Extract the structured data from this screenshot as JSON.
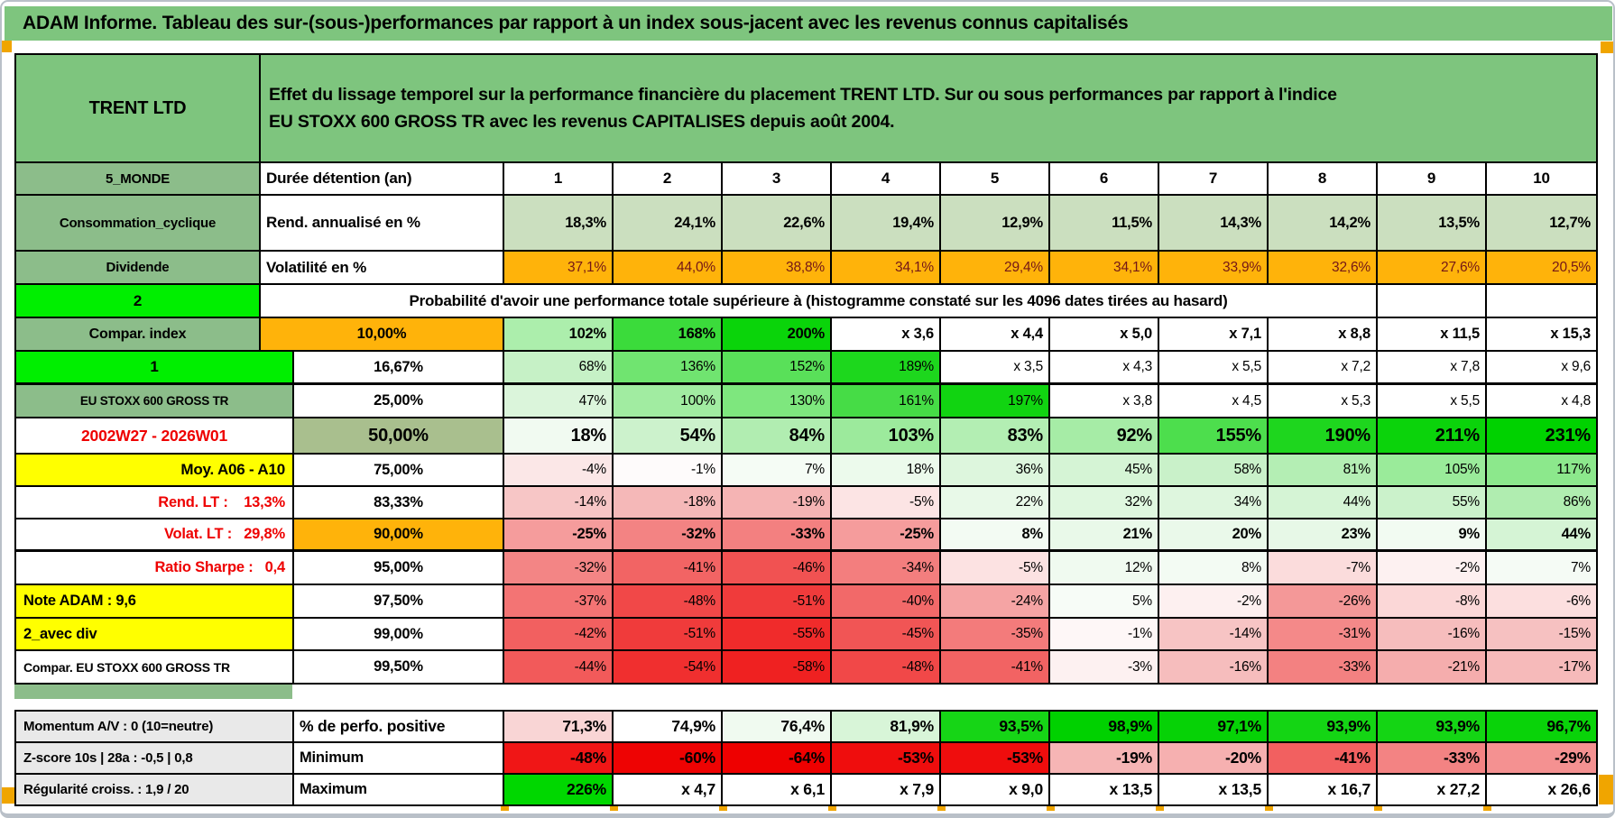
{
  "title": {
    "text": "ADAM Informe. Tableau des sur-(sous-)performances par rapport à un index sous-jacent avec les revenus connus capitalisés"
  },
  "sheet_header": {
    "instrument": "TRENT LTD",
    "description_line1": "Effet du lissage temporel sur la performance financière du placement TRENT LTD. Sur ou sous performances par rapport à l'indice",
    "description_line2": "EU STOXX 600 GROSS TR avec les revenus CAPITALISES depuis août 2004."
  },
  "palette": {
    "green_header": "#7ec57e",
    "green_label": "#8cbd8a",
    "green_bright": "#00ef00",
    "green_sage": "#cbdfbf",
    "green_olive": "#a9bf8e",
    "orange": "#ffb30a",
    "orange_marker": "#f0a500",
    "yellow": "#ffff00",
    "gray_label": "#e9e9e9",
    "red_text": "#ee0000",
    "dark_red_text": "#731717",
    "comment_marker": "#ff0000"
  },
  "rows": [
    {
      "key": "duree",
      "label": {
        "t": "5_MONDE",
        "bg": "#8cbd8a"
      },
      "b": {
        "t": "Durée détention (an)",
        "bg": ""
      },
      "cells": [
        [
          "1",
          ""
        ],
        [
          "2",
          ""
        ],
        [
          "3",
          ""
        ],
        [
          "4",
          ""
        ],
        [
          "5",
          ""
        ],
        [
          "6",
          ""
        ],
        [
          "7",
          ""
        ],
        [
          "8",
          ""
        ],
        [
          "9",
          ""
        ],
        [
          "10",
          ""
        ]
      ]
    },
    {
      "key": "rend",
      "label": {
        "t": "Consommation_cyclique",
        "bg": "#8cbd8a"
      },
      "b": {
        "t": "Rend. annualisé en %",
        "bg": ""
      },
      "cells": [
        [
          "18,3%",
          "#cbdfbf"
        ],
        [
          "24,1%",
          "#cbdfbf"
        ],
        [
          "22,6%",
          "#cbdfbf"
        ],
        [
          "19,4%",
          "#cbdfbf"
        ],
        [
          "12,9%",
          "#cbdfbf"
        ],
        [
          "11,5%",
          "#cbdfbf"
        ],
        [
          "14,3%",
          "#cbdfbf"
        ],
        [
          "14,2%",
          "#cbdfbf"
        ],
        [
          "13,5%",
          "#cbdfbf"
        ],
        [
          "12,7%",
          "#cbdfbf"
        ]
      ]
    },
    {
      "key": "volat",
      "label": {
        "t": "Dividende",
        "bg": "#8cbd8a"
      },
      "b": {
        "t": "Volatilité en %",
        "bg": ""
      },
      "cells": [
        [
          "37,1%",
          "#ffb30a"
        ],
        [
          "44,0%",
          "#ffb30a"
        ],
        [
          "38,8%",
          "#ffb30a"
        ],
        [
          "34,1%",
          "#ffb30a"
        ],
        [
          "29,4%",
          "#ffb30a"
        ],
        [
          "34,1%",
          "#ffb30a"
        ],
        [
          "33,9%",
          "#ffb30a"
        ],
        [
          "32,6%",
          "#ffb30a"
        ],
        [
          "27,6%",
          "#ffb30a"
        ],
        [
          "20,5%",
          "#ffb30a"
        ]
      ]
    },
    {
      "key": "prob",
      "label": {
        "t": "2",
        "bg": "#00ef00",
        "marker": true
      },
      "b": {
        "t": "Probabilité d'avoir une performance totale supérieure à (histogramme constaté sur les 4096 dates tirées au hasard)",
        "bg": "",
        "span": 9
      },
      "cells": [
        [
          "",
          ""
        ],
        [
          "",
          ""
        ]
      ]
    },
    {
      "key": "p10",
      "label": {
        "t": "Compar. index",
        "bg": "#8cbd8a"
      },
      "b": {
        "t": "10,00%",
        "bg": "#ffb30a"
      },
      "cells": [
        [
          "102%",
          "#aceeac"
        ],
        [
          "168%",
          "#3bdb3b"
        ],
        [
          "200%",
          "#0ad40a"
        ],
        [
          "x 3,6",
          ""
        ],
        [
          "x 4,4",
          ""
        ],
        [
          "x 5,0",
          ""
        ],
        [
          "x 7,1",
          ""
        ],
        [
          "x 8,8",
          ""
        ],
        [
          "x 11,5",
          ""
        ],
        [
          "x 15,3",
          ""
        ]
      ]
    },
    {
      "key": "p1667",
      "label": {
        "t": "1",
        "bg": "#00ef00",
        "marker": true
      },
      "b": {
        "t": "16,67%",
        "bg": ""
      },
      "cells": [
        [
          "68%",
          "#c6f1c6"
        ],
        [
          "136%",
          "#70e470"
        ],
        [
          "152%",
          "#59e059"
        ],
        [
          "189%",
          "#1dd71d"
        ],
        [
          "x 3,5",
          ""
        ],
        [
          "x 4,3",
          ""
        ],
        [
          "x 5,5",
          ""
        ],
        [
          "x 7,2",
          ""
        ],
        [
          "x 7,8",
          ""
        ],
        [
          "x 9,6",
          ""
        ]
      ]
    },
    {
      "key": "p25",
      "label": {
        "t": "EU STOXX 600 GROSS TR",
        "bg": "#8cbd8a"
      },
      "b": {
        "t": "25,00%",
        "bg": ""
      },
      "cells": [
        [
          "47%",
          "#dbf5db"
        ],
        [
          "100%",
          "#a1eca1"
        ],
        [
          "130%",
          "#7ee77e"
        ],
        [
          "161%",
          "#46dc46"
        ],
        [
          "197%",
          "#11d411"
        ],
        [
          "x 3,8",
          ""
        ],
        [
          "x 4,5",
          ""
        ],
        [
          "x 5,3",
          ""
        ],
        [
          "x 5,5",
          ""
        ],
        [
          "x 4,8",
          ""
        ]
      ]
    },
    {
      "key": "p50",
      "label": {
        "t": "2002W27 - 2026W01",
        "bg": "",
        "fg": "#ee0000"
      },
      "b": {
        "t": "50,00%",
        "bg": "#a9bf8e"
      },
      "cells": [
        [
          "18%",
          "#f1faf1"
        ],
        [
          "54%",
          "#ccf2cc"
        ],
        [
          "84%",
          "#b1edb1"
        ],
        [
          "103%",
          "#9cea9c"
        ],
        [
          "83%",
          "#b3eeb3"
        ],
        [
          "92%",
          "#a6eca6"
        ],
        [
          "155%",
          "#4dde4d"
        ],
        [
          "190%",
          "#1ed61e"
        ],
        [
          "211%",
          "#0bd30b"
        ],
        [
          "231%",
          "#00d200"
        ]
      ]
    },
    {
      "key": "p75",
      "label": {
        "t": "Moy. A06 - A10",
        "bg": "#ffff00"
      },
      "b": {
        "t": "75,00%",
        "bg": ""
      },
      "cells": [
        [
          "-4%",
          "#fbe7e7"
        ],
        [
          "-1%",
          "#fefbfb"
        ],
        [
          "7%",
          "#f5fcf5"
        ],
        [
          "18%",
          "#ecfaec"
        ],
        [
          "36%",
          "#ddf6dd"
        ],
        [
          "45%",
          "#d5f4d5"
        ],
        [
          "58%",
          "#c9f1c9"
        ],
        [
          "81%",
          "#b4eeb4"
        ],
        [
          "105%",
          "#9aeb9a"
        ],
        [
          "117%",
          "#8ce88c"
        ]
      ]
    },
    {
      "key": "p8333",
      "label": {
        "t": "Rend. LT :    13,3%",
        "bg": "",
        "fg": "#ee0000"
      },
      "b": {
        "t": "83,33%",
        "bg": ""
      },
      "cells": [
        [
          "-14%",
          "#f7c6c6"
        ],
        [
          "-18%",
          "#f5b8b8"
        ],
        [
          "-19%",
          "#f5b4b4"
        ],
        [
          "-5%",
          "#fce4e4"
        ],
        [
          "22%",
          "#e8f9e8"
        ],
        [
          "32%",
          "#dff7df"
        ],
        [
          "34%",
          "#def6de"
        ],
        [
          "44%",
          "#d5f4d5"
        ],
        [
          "55%",
          "#cbf2cb"
        ],
        [
          "86%",
          "#b0edb0"
        ]
      ]
    },
    {
      "key": "p90",
      "label": {
        "t": "Volat. LT :   29,8%",
        "bg": "",
        "fg": "#ee0000"
      },
      "b": {
        "t": "90,00%",
        "bg": "#ffb30a"
      },
      "cells": [
        [
          "-25%",
          "#f59c9c"
        ],
        [
          "-32%",
          "#f38383"
        ],
        [
          "-33%",
          "#f38080"
        ],
        [
          "-25%",
          "#f59c9c"
        ],
        [
          "8%",
          "#f3fbf3"
        ],
        [
          "21%",
          "#e9f9e9"
        ],
        [
          "20%",
          "#eaf9ea"
        ],
        [
          "23%",
          "#e7f8e7"
        ],
        [
          "9%",
          "#f2fbf2"
        ],
        [
          "44%",
          "#d5f4d5"
        ]
      ]
    },
    {
      "key": "p95",
      "label": {
        "t": "Ratio Sharpe :   0,4",
        "bg": "",
        "fg": "#ee0000"
      },
      "b": {
        "t": "95,00%",
        "bg": ""
      },
      "cells": [
        [
          "-32%",
          "#f38585"
        ],
        [
          "-41%",
          "#f26464"
        ],
        [
          "-46%",
          "#f15252"
        ],
        [
          "-34%",
          "#f37e7e"
        ],
        [
          "-5%",
          "#fce2e2"
        ],
        [
          "12%",
          "#f0faf0"
        ],
        [
          "8%",
          "#f3fbf3"
        ],
        [
          "-7%",
          "#fbdcdc"
        ],
        [
          "-2%",
          "#fdf1f1"
        ],
        [
          "7%",
          "#f5fbf5"
        ]
      ]
    },
    {
      "key": "p975",
      "label": {
        "t": "Note ADAM : 9,6",
        "bg": "#ffff00"
      },
      "b": {
        "t": "97,50%",
        "bg": ""
      },
      "cells": [
        [
          "-37%",
          "#f37474"
        ],
        [
          "-48%",
          "#f14848"
        ],
        [
          "-51%",
          "#f03b3b"
        ],
        [
          "-40%",
          "#f26969"
        ],
        [
          "-24%",
          "#f5a4a4"
        ],
        [
          "5%",
          "#f7fcf7"
        ],
        [
          "-2%",
          "#fdf0f0"
        ],
        [
          "-26%",
          "#f49898"
        ],
        [
          "-8%",
          "#fbd7d7"
        ],
        [
          "-6%",
          "#fcdfdf"
        ]
      ]
    },
    {
      "key": "p99",
      "label": {
        "t": "2_avec div",
        "bg": "#ffff00"
      },
      "b": {
        "t": "99,00%",
        "bg": ""
      },
      "cells": [
        [
          "-42%",
          "#f26060"
        ],
        [
          "-51%",
          "#f03b3b"
        ],
        [
          "-55%",
          "#f02b2b"
        ],
        [
          "-45%",
          "#f15555"
        ],
        [
          "-35%",
          "#f37b7b"
        ],
        [
          "-1%",
          "#fef7f7"
        ],
        [
          "-14%",
          "#f7c4c4"
        ],
        [
          "-31%",
          "#f48989"
        ],
        [
          "-16%",
          "#f6bdbd"
        ],
        [
          "-15%",
          "#f6c1c1"
        ]
      ]
    },
    {
      "key": "p995",
      "label": {
        "t": "Compar. EU STOXX 600 GROSS TR",
        "bg": ""
      },
      "b": {
        "t": "99,50%",
        "bg": ""
      },
      "cells": [
        [
          "-44%",
          "#f25a5a"
        ],
        [
          "-54%",
          "#f02f2f"
        ],
        [
          "-58%",
          "#ef2121"
        ],
        [
          "-48%",
          "#f14848"
        ],
        [
          "-41%",
          "#f26363"
        ],
        [
          "-3%",
          "#fdf1f1"
        ],
        [
          "-16%",
          "#f6bdbd"
        ],
        [
          "-33%",
          "#f38181"
        ],
        [
          "-21%",
          "#f5adad"
        ],
        [
          "-17%",
          "#f6baba"
        ]
      ]
    },
    {
      "key": "perfo",
      "label": {
        "t": "Momentum A/V : 0 (10=neutre)",
        "bg": "#e9e9e9"
      },
      "b": {
        "t": "% de perfo. positive",
        "bg": ""
      },
      "cells": [
        [
          "71,3%",
          "#f9d5d5"
        ],
        [
          "74,9%",
          ""
        ],
        [
          "76,4%",
          "#f0faf0"
        ],
        [
          "81,9%",
          "#d8f5d8"
        ],
        [
          "93,5%",
          "#16d516"
        ],
        [
          "98,9%",
          "#00d100"
        ],
        [
          "97,1%",
          "#06d206"
        ],
        [
          "93,9%",
          "#14d514"
        ],
        [
          "93,9%",
          "#14d514"
        ],
        [
          "96,7%",
          "#09d309"
        ]
      ]
    },
    {
      "key": "min",
      "label": {
        "t": "Z-score 10s | 28a : -0,5 | 0,8",
        "bg": "#e9e9e9"
      },
      "b": {
        "t": "Minimum",
        "bg": ""
      },
      "cells": [
        [
          "-48%",
          "#f01616"
        ],
        [
          "-60%",
          "#ee0303"
        ],
        [
          "-64%",
          "#ee0000"
        ],
        [
          "-53%",
          "#ef0d0d"
        ],
        [
          "-53%",
          "#ef0d0d"
        ],
        [
          "-19%",
          "#f6b5b5"
        ],
        [
          "-20%",
          "#f6b0b0"
        ],
        [
          "-41%",
          "#f26060"
        ],
        [
          "-33%",
          "#f38383"
        ],
        [
          "-29%",
          "#f49191"
        ]
      ]
    },
    {
      "key": "max",
      "label": {
        "t": "Régularité croiss. : 1,9 / 20",
        "bg": "#e9e9e9"
      },
      "b": {
        "t": "Maximum",
        "bg": ""
      },
      "cells": [
        [
          "226%",
          "#00d700"
        ],
        [
          "x 4,7",
          ""
        ],
        [
          "x 6,1",
          ""
        ],
        [
          "x 7,9",
          ""
        ],
        [
          "x 9,0",
          ""
        ],
        [
          "x 13,5",
          ""
        ],
        [
          "x 13,5",
          ""
        ],
        [
          "x 16,7",
          ""
        ],
        [
          "x 27,2",
          ""
        ],
        [
          "x 26,6",
          ""
        ]
      ]
    }
  ]
}
